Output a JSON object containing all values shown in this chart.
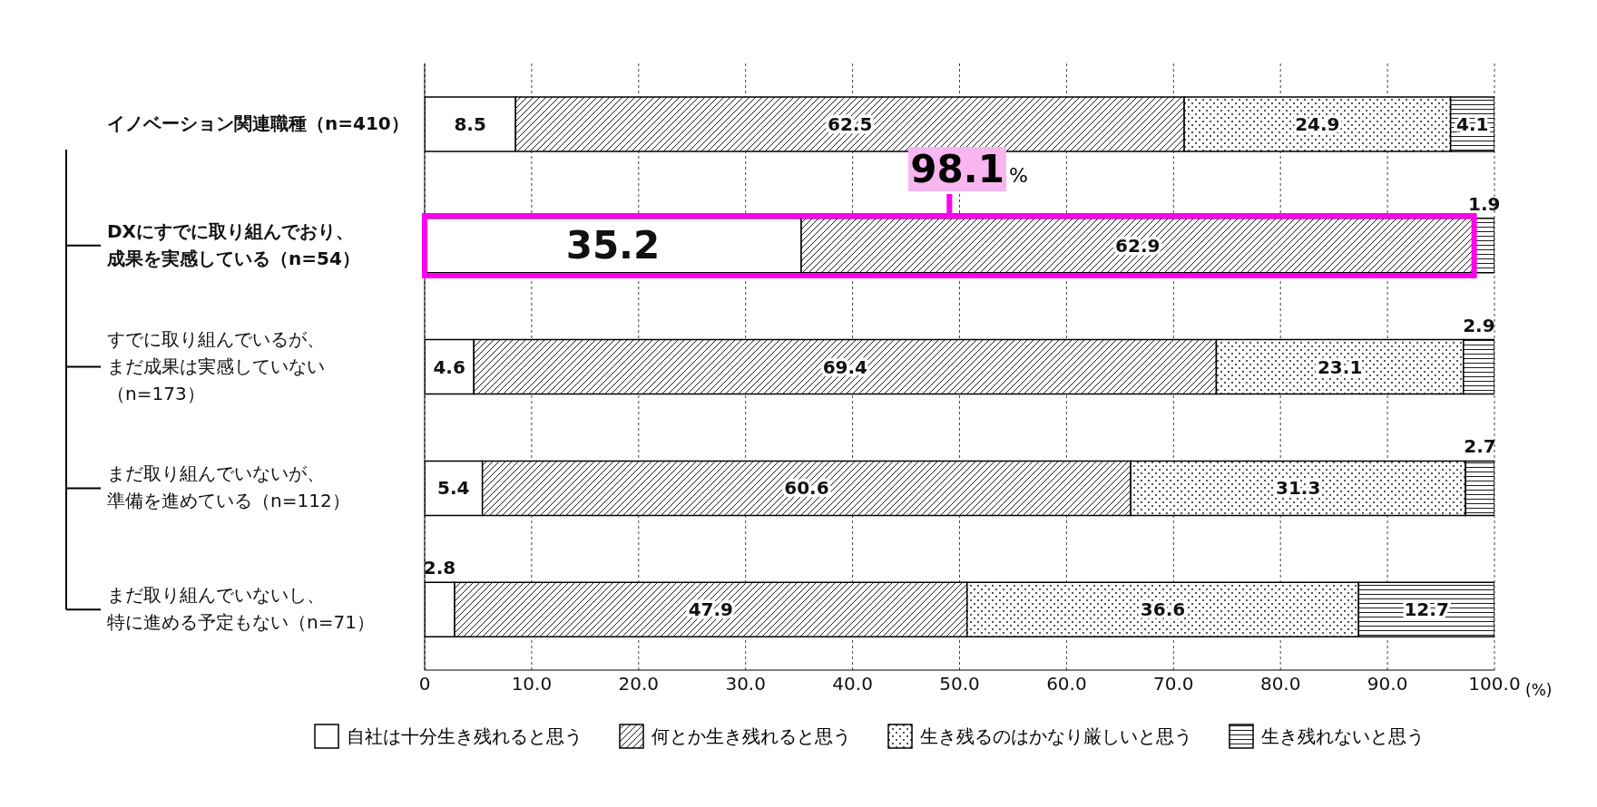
{
  "chart_data": {
    "type": "bar",
    "orientation": "horizontal",
    "stacked": true,
    "categories": [
      "イノベーション関連職種（n=410）",
      "DXにすでに取り組んでおり、成果を実感している（n=54）",
      "すでに取り組んでいるが、まだ成果は実感していない（n=173）",
      "まだ取り組んでいないが、準備を進めている（n=112）",
      "まだ取り組んでいないし、特に進める予定もない（n=71）"
    ],
    "series": [
      {
        "name": "自社は十分生き残れると思う",
        "color": "#ffffff",
        "values": [
          8.5,
          35.2,
          4.6,
          5.4,
          2.8
        ]
      },
      {
        "name": "何とか生き残れると思う",
        "color": "#000000",
        "values": [
          62.5,
          62.9,
          69.4,
          60.6,
          47.9
        ]
      },
      {
        "name": "生き残るのはかなり厳しいと思う",
        "color": "#000000",
        "values": [
          24.9,
          null,
          23.1,
          31.3,
          36.6
        ]
      },
      {
        "name": "生き残れないと思う",
        "color": "#000000",
        "values": [
          4.1,
          1.9,
          2.9,
          2.7,
          12.7
        ]
      }
    ],
    "xlim": [
      0,
      100
    ],
    "xticks": [
      0,
      {
        "value": 10,
        "label": "10.0"
      },
      {
        "value": 20,
        "label": "20.0"
      },
      {
        "value": 30,
        "label": "30.0"
      },
      {
        "value": 40,
        "label": "40.0"
      },
      {
        "value": 50,
        "label": "50.0"
      },
      {
        "value": 60,
        "label": "60.0"
      },
      {
        "value": 70,
        "label": "70.0"
      },
      {
        "value": 80,
        "label": "80.0"
      },
      {
        "value": 90,
        "label": "90.0"
      },
      {
        "value": 100,
        "label": "100.0"
      }
    ],
    "xlabel": "(%)",
    "grid": "x",
    "legend": "bottom",
    "data_labels": true,
    "annotations": [
      "98.1%"
    ]
  }
}
